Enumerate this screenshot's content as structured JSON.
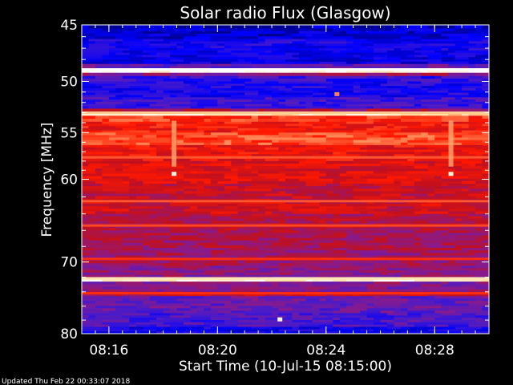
{
  "chart_data": {
    "type": "heatmap",
    "title": "Solar radio Flux (Glasgow)",
    "xlabel": "Start Time (10-Jul-15 08:15:00)",
    "ylabel": "Frequency [MHz]",
    "x_start_minutes": 0,
    "x_end_minutes": 15,
    "x_ticks": [
      {
        "minute": 1,
        "label": "08:16"
      },
      {
        "minute": 5,
        "label": "08:20"
      },
      {
        "minute": 9,
        "label": "08:24"
      },
      {
        "minute": 13,
        "label": "08:28"
      }
    ],
    "y_scale": "log",
    "ylim": [
      45,
      80
    ],
    "y_ticks": [
      {
        "value": 45,
        "label": "45"
      },
      {
        "value": 50,
        "label": "50"
      },
      {
        "value": 55,
        "label": "55"
      },
      {
        "value": 60,
        "label": "60"
      },
      {
        "value": 70,
        "label": "70"
      },
      {
        "value": 80,
        "label": "80"
      }
    ],
    "y_minor_ticks": [
      46,
      47,
      48,
      49,
      51,
      52,
      53,
      54,
      56,
      57,
      58,
      59,
      62,
      64,
      66,
      68,
      72,
      74,
      76,
      78
    ],
    "colormap": [
      "#000090",
      "#0000ff",
      "#4a1bc8",
      "#8a1a8a",
      "#c01020",
      "#ff1800",
      "#ff8050",
      "#ffe0a0",
      "#ffffff"
    ],
    "frequency_bands": [
      {
        "from": 45.0,
        "to": 45.3,
        "level": 0.05
      },
      {
        "from": 45.3,
        "to": 46.2,
        "level": 0.08
      },
      {
        "from": 46.2,
        "to": 47.2,
        "level": 0.15
      },
      {
        "from": 47.2,
        "to": 48.4,
        "level": 0.12
      },
      {
        "from": 48.4,
        "to": 48.8,
        "level": 0.3
      },
      {
        "from": 48.8,
        "to": 49.2,
        "level": 0.98
      },
      {
        "from": 49.2,
        "to": 49.5,
        "level": 0.4
      },
      {
        "from": 49.5,
        "to": 50.0,
        "level": 0.2
      },
      {
        "from": 50.0,
        "to": 51.5,
        "level": 0.16
      },
      {
        "from": 51.5,
        "to": 52.6,
        "level": 0.22
      },
      {
        "from": 52.6,
        "to": 52.9,
        "level": 0.45
      },
      {
        "from": 52.9,
        "to": 53.3,
        "level": 0.9
      },
      {
        "from": 53.3,
        "to": 53.9,
        "level": 0.66
      },
      {
        "from": 53.9,
        "to": 55.0,
        "level": 0.6
      },
      {
        "from": 55.0,
        "to": 56.3,
        "level": 0.69
      },
      {
        "from": 56.3,
        "to": 58.0,
        "level": 0.58
      },
      {
        "from": 58.0,
        "to": 60.5,
        "level": 0.55
      },
      {
        "from": 60.5,
        "to": 62.5,
        "level": 0.5
      },
      {
        "from": 62.5,
        "to": 64.0,
        "level": 0.52
      },
      {
        "from": 64.0,
        "to": 66.0,
        "level": 0.47
      },
      {
        "from": 66.0,
        "to": 68.5,
        "level": 0.44
      },
      {
        "from": 68.5,
        "to": 70.5,
        "level": 0.42
      },
      {
        "from": 70.5,
        "to": 72.0,
        "level": 0.38
      },
      {
        "from": 72.0,
        "to": 72.6,
        "level": 0.95
      },
      {
        "from": 72.6,
        "to": 74.0,
        "level": 0.36
      },
      {
        "from": 74.0,
        "to": 74.6,
        "level": 0.48
      },
      {
        "from": 74.6,
        "to": 77.0,
        "level": 0.3
      },
      {
        "from": 77.0,
        "to": 79.0,
        "level": 0.25
      },
      {
        "from": 79.0,
        "to": 80.0,
        "level": 0.14
      }
    ],
    "horizontal_lines": [
      {
        "freq": 48.9,
        "level": 1.0
      },
      {
        "freq": 53.0,
        "level": 0.85
      },
      {
        "freq": 72.2,
        "level": 0.9
      },
      {
        "freq": 57.6,
        "level": 0.7
      },
      {
        "freq": 62.5,
        "level": 0.7
      },
      {
        "freq": 65.4,
        "level": 0.68
      },
      {
        "freq": 69.6,
        "level": 0.65
      },
      {
        "freq": 74.2,
        "level": 0.65
      }
    ],
    "vertical_features": [
      {
        "minute": 3.4,
        "from": 53.8,
        "to": 58.6,
        "level": 0.8
      },
      {
        "minute": 13.6,
        "from": 53.8,
        "to": 58.6,
        "level": 0.8
      }
    ],
    "spots": [
      {
        "minute": 3.4,
        "freq": 59.4,
        "level": 0.95
      },
      {
        "minute": 13.6,
        "freq": 59.4,
        "level": 0.95
      },
      {
        "minute": 9.4,
        "freq": 51.2,
        "level": 0.75
      },
      {
        "minute": 7.3,
        "freq": 77.9,
        "level": 0.95
      }
    ],
    "footer": "Updated Thu Feb 22 00:33:07 2018"
  }
}
